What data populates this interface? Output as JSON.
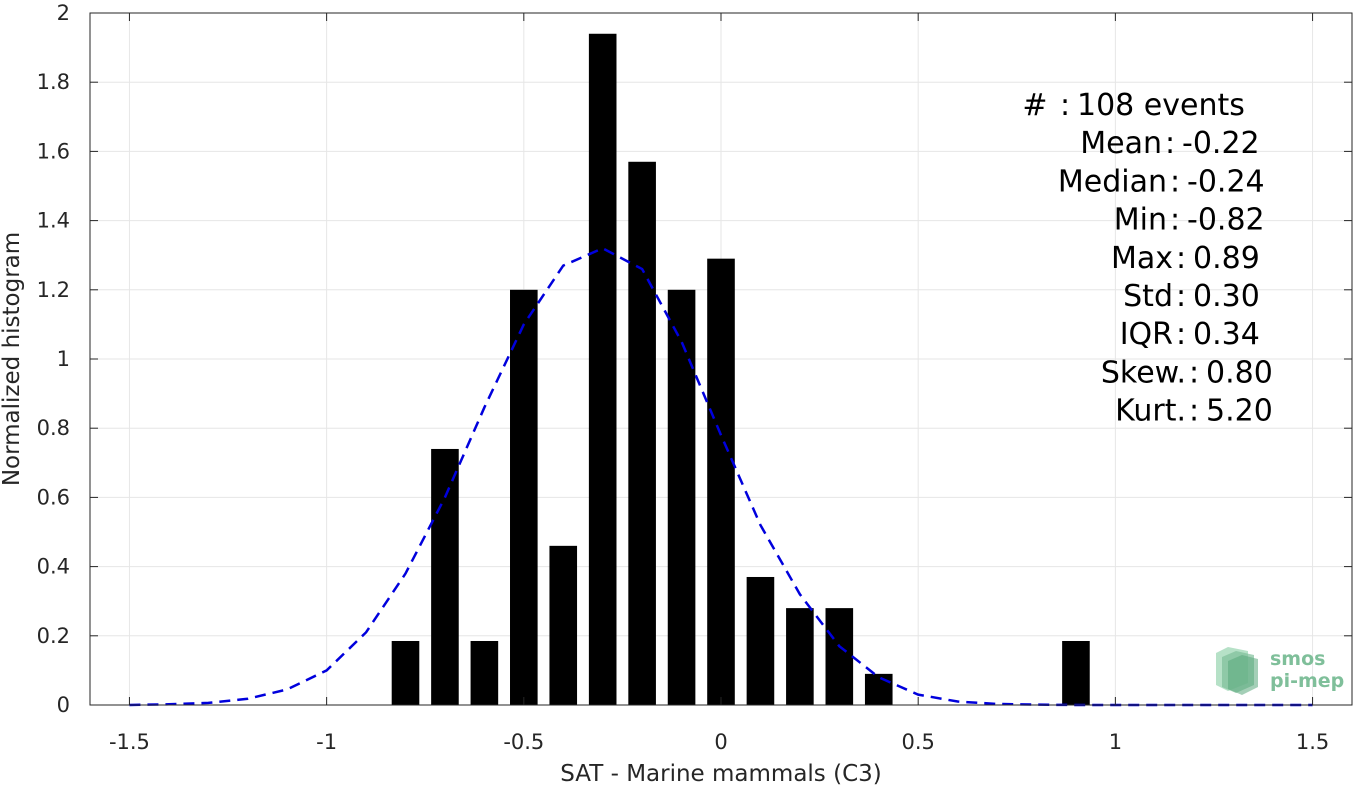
{
  "chart_data": {
    "type": "bar",
    "title": "",
    "xlabel": "SAT - Marine mammals (C3)",
    "ylabel": "Normalized histogram",
    "xlim": [
      -1.6,
      1.6
    ],
    "ylim": [
      0,
      2
    ],
    "x_ticks": [
      -1.5,
      -1,
      -0.5,
      0,
      0.5,
      1,
      1.5
    ],
    "x_tick_labels": [
      "-1.5",
      "-1",
      "-0.5",
      "0",
      "0.5",
      "1",
      "1.5"
    ],
    "y_ticks": [
      0,
      0.2,
      0.4,
      0.6,
      0.8,
      1,
      1.2,
      1.4,
      1.6,
      1.8,
      2
    ],
    "y_tick_labels": [
      "0",
      "0.2",
      "0.4",
      "0.6",
      "0.8",
      "1",
      "1.2",
      "1.4",
      "1.6",
      "1.8",
      "2"
    ],
    "grid": true,
    "bar_color": "#000000",
    "bar_width": 0.07,
    "bars": [
      {
        "x": -0.8,
        "y": 0.185
      },
      {
        "x": -0.7,
        "y": 0.74
      },
      {
        "x": -0.6,
        "y": 0.185
      },
      {
        "x": -0.5,
        "y": 1.2
      },
      {
        "x": -0.4,
        "y": 0.46
      },
      {
        "x": -0.3,
        "y": 1.94
      },
      {
        "x": -0.2,
        "y": 1.57
      },
      {
        "x": -0.1,
        "y": 1.2
      },
      {
        "x": 0.0,
        "y": 1.29
      },
      {
        "x": 0.1,
        "y": 0.37
      },
      {
        "x": 0.2,
        "y": 0.28
      },
      {
        "x": 0.3,
        "y": 0.28
      },
      {
        "x": 0.4,
        "y": 0.09
      },
      {
        "x": 0.9,
        "y": 0.185
      }
    ],
    "fit_curve": {
      "style": "dashed",
      "color": "#0000dd",
      "x": [
        -1.5,
        -1.4,
        -1.3,
        -1.2,
        -1.1,
        -1.0,
        -0.9,
        -0.8,
        -0.7,
        -0.6,
        -0.5,
        -0.4,
        -0.3,
        -0.2,
        -0.1,
        0.0,
        0.1,
        0.2,
        0.3,
        0.4,
        0.5,
        0.6,
        0.7,
        0.8,
        0.9,
        1.0,
        1.1,
        1.2,
        1.3,
        1.4,
        1.5
      ],
      "y": [
        0.0,
        0.002,
        0.006,
        0.018,
        0.045,
        0.1,
        0.21,
        0.38,
        0.6,
        0.86,
        1.1,
        1.27,
        1.32,
        1.26,
        1.05,
        0.78,
        0.52,
        0.32,
        0.17,
        0.08,
        0.03,
        0.01,
        0.003,
        0.001,
        0.0,
        0.0,
        0.0,
        0.0,
        0.0,
        0.0,
        0.0
      ]
    },
    "stats": [
      {
        "label": "#  ",
        "value": "108 events"
      },
      {
        "label": "Mean",
        "value": "-0.22"
      },
      {
        "label": "Median",
        "value": "-0.24"
      },
      {
        "label": "Min",
        "value": "-0.82"
      },
      {
        "label": "Max",
        "value": "0.89"
      },
      {
        "label": "Std",
        "value": "0.30"
      },
      {
        "label": "IQR",
        "value": "0.34"
      },
      {
        "label": "Skew.",
        "value": "0.80"
      },
      {
        "label": "Kurt.",
        "value": "5.20"
      }
    ]
  },
  "logo": {
    "line1": "smos",
    "line2": "pi-mep",
    "color": "#7fbf9a"
  }
}
